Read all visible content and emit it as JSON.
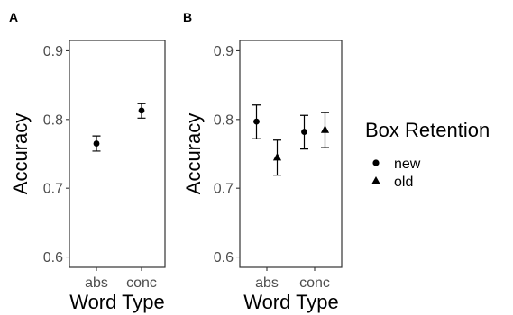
{
  "chart_data": [
    {
      "panel_label": "A",
      "type": "scatter",
      "error_bars": true,
      "xlabel": "Word Type",
      "ylabel": "Accuracy",
      "categories": [
        "abs",
        "conc"
      ],
      "ylim": [
        0.585,
        0.915
      ],
      "yticks": [
        0.6,
        0.7,
        0.8,
        0.9
      ],
      "ytick_labels": [
        "0.6",
        "0.7",
        "0.8",
        "0.9"
      ],
      "grid": false,
      "series": [
        {
          "marker": "circle",
          "points": [
            {
              "x": "abs",
              "y": 0.765,
              "ymin": 0.754,
              "ymax": 0.776
            },
            {
              "x": "conc",
              "y": 0.813,
              "ymin": 0.802,
              "ymax": 0.823
            }
          ]
        }
      ]
    },
    {
      "panel_label": "B",
      "type": "scatter",
      "error_bars": true,
      "xlabel": "Word Type",
      "ylabel": "Accuracy",
      "categories": [
        "abs",
        "conc"
      ],
      "ylim": [
        0.585,
        0.915
      ],
      "yticks": [
        0.6,
        0.7,
        0.8,
        0.9
      ],
      "ytick_labels": [
        "0.6",
        "0.7",
        "0.8",
        "0.9"
      ],
      "grid": false,
      "legend": {
        "title": "Box Retention",
        "position": "right",
        "entries": [
          {
            "label": "new",
            "marker": "circle"
          },
          {
            "label": "old",
            "marker": "triangle"
          }
        ]
      },
      "series": [
        {
          "name": "new",
          "marker": "circle",
          "points": [
            {
              "x": "abs",
              "y": 0.797,
              "ymin": 0.772,
              "ymax": 0.821
            },
            {
              "x": "conc",
              "y": 0.782,
              "ymin": 0.757,
              "ymax": 0.806
            }
          ]
        },
        {
          "name": "old",
          "marker": "triangle",
          "points": [
            {
              "x": "abs",
              "y": 0.745,
              "ymin": 0.719,
              "ymax": 0.77
            },
            {
              "x": "conc",
              "y": 0.785,
              "ymin": 0.759,
              "ymax": 0.81
            }
          ]
        }
      ]
    }
  ]
}
